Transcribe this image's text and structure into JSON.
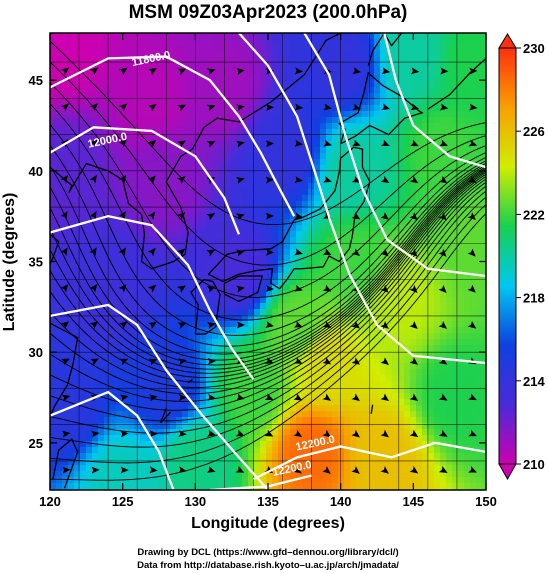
{
  "chart_data": {
    "type": "heatmap",
    "title": "MSM 09Z03Apr2023 (200.0hPa)",
    "xlabel": "Longitude (degrees)",
    "ylabel": "Latitude  (degrees)",
    "xlim": [
      120,
      150
    ],
    "ylim": [
      22.4,
      47.6
    ],
    "x_ticks": [
      "120",
      "125",
      "130",
      "135",
      "140",
      "145",
      "150"
    ],
    "y_ticks": [
      "25",
      "30",
      "35",
      "40",
      "45"
    ],
    "colorbar": {
      "range": [
        210,
        230
      ],
      "ticks": [
        "230",
        "226",
        "222",
        "218",
        "214",
        "210"
      ],
      "colors_low_to_high": [
        "#cc00b0",
        "#4a2bd8",
        "#1040e0",
        "#00c8f0",
        "#18d050",
        "#d0ee00",
        "#f8a000",
        "#ff3010"
      ]
    },
    "contour_labels": [
      {
        "text": "11800.0",
        "lon": 127.0,
        "lat": 46.0
      },
      {
        "text": "12000.0",
        "lon": 124.0,
        "lat": 41.5
      },
      {
        "text": "12200.0",
        "lon": 138.3,
        "lat": 24.8
      },
      {
        "text": "12200.0",
        "lon": 136.7,
        "lat": 23.4
      }
    ],
    "temperature_field": [
      {
        "lon": 121,
        "lat": 46.5,
        "value": 210.0
      },
      {
        "lon": 127,
        "lat": 44.0,
        "value": 210.5
      },
      {
        "lon": 132,
        "lat": 44.5,
        "value": 211.0
      },
      {
        "lon": 128,
        "lat": 39.5,
        "value": 211.5
      },
      {
        "lon": 121,
        "lat": 40.0,
        "value": 212.5
      },
      {
        "lon": 124,
        "lat": 33.5,
        "value": 213.5
      },
      {
        "lon": 121,
        "lat": 27.0,
        "value": 214.5
      },
      {
        "lon": 128,
        "lat": 28.0,
        "value": 215.0
      },
      {
        "lon": 133,
        "lat": 34.5,
        "value": 213.0
      },
      {
        "lon": 136,
        "lat": 41.0,
        "value": 214.0
      },
      {
        "lon": 140,
        "lat": 46.0,
        "value": 214.0
      },
      {
        "lon": 145,
        "lat": 46.5,
        "value": 220.0
      },
      {
        "lon": 149,
        "lat": 46.0,
        "value": 221.5
      },
      {
        "lon": 147,
        "lat": 41.0,
        "value": 222.0
      },
      {
        "lon": 149,
        "lat": 36.0,
        "value": 222.5
      },
      {
        "lon": 141,
        "lat": 40.0,
        "value": 220.0
      },
      {
        "lon": 141,
        "lat": 35.0,
        "value": 222.0
      },
      {
        "lon": 144,
        "lat": 33.0,
        "value": 224.0
      },
      {
        "lon": 137,
        "lat": 31.5,
        "value": 222.5
      },
      {
        "lon": 139,
        "lat": 29.5,
        "value": 225.0
      },
      {
        "lon": 134,
        "lat": 28.0,
        "value": 222.0
      },
      {
        "lon": 138,
        "lat": 24.5,
        "value": 228.5
      },
      {
        "lon": 143,
        "lat": 24.0,
        "value": 226.0
      },
      {
        "lon": 148,
        "lat": 27.5,
        "value": 221.5
      },
      {
        "lon": 130,
        "lat": 24.0,
        "value": 220.5
      },
      {
        "lon": 125,
        "lat": 23.0,
        "value": 219.5
      }
    ]
  },
  "credits": {
    "line1": "Drawing by DCL (https://www.gfd–dennou.org/library/dcl/)",
    "line2": "Data from http://database.rish.kyoto–u.ac.jp/arch/jmadata/"
  }
}
